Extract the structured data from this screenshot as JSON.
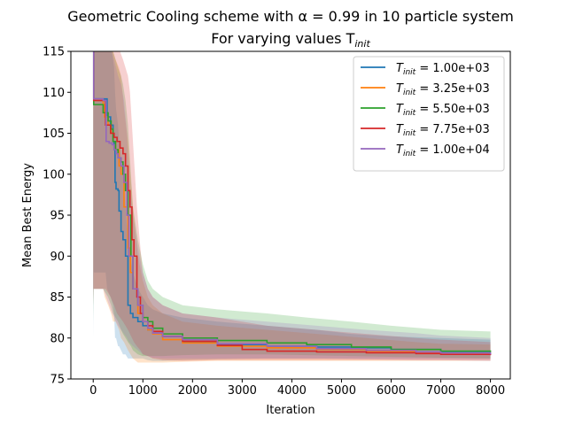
{
  "chart_data": {
    "type": "line",
    "title": "Geometric Cooling scheme with α = 0.99 in 10 particle system",
    "subtitle": "For varying values T",
    "subtitle_subscript": "init",
    "xlabel": "Iteration",
    "ylabel": "Mean Best Energy",
    "xlim": [
      -450,
      8400
    ],
    "ylim": [
      75,
      115
    ],
    "xticks": [
      0,
      1000,
      2000,
      3000,
      4000,
      5000,
      6000,
      7000,
      8000
    ],
    "yticks": [
      75,
      80,
      85,
      90,
      95,
      100,
      105,
      110,
      115
    ],
    "grid": false,
    "legend_position": "top-right",
    "legend_prefix": "T",
    "legend_subscript": "init",
    "series": [
      {
        "name": "1.00e+03",
        "color": "#1f77b4",
        "x": [
          0,
          10,
          250,
          280,
          350,
          400,
          420,
          440,
          460,
          500,
          520,
          560,
          600,
          650,
          700,
          750,
          800,
          900,
          1000,
          1100,
          1200,
          1400,
          1800,
          2500,
          3500,
          4500,
          5200,
          6000,
          7000,
          8000
        ],
        "y": [
          115,
          109.2,
          109.2,
          107,
          106,
          104,
          103,
          99,
          98.2,
          98,
          95.5,
          93,
          92,
          90,
          84,
          83,
          82.5,
          82,
          81.5,
          81,
          80.6,
          80.2,
          79.5,
          79.2,
          79,
          78.9,
          78.8,
          78.6,
          78.3,
          78.3
        ],
        "lower": [
          80,
          88,
          88,
          86,
          85,
          84,
          83,
          80,
          80,
          79,
          79,
          78.5,
          78,
          78,
          77.5,
          77.5,
          77.5,
          77.5,
          77.5,
          77.3,
          77.2,
          77.2,
          77.3,
          77.4,
          77.5,
          77.5,
          77.5,
          77.5,
          77.5,
          77.5
        ],
        "upper": [
          118,
          118,
          118,
          117,
          116,
          114,
          113,
          110,
          108,
          106,
          104,
          102,
          100,
          96,
          92,
          90,
          88,
          86,
          85,
          84,
          83.5,
          83,
          82.5,
          82,
          81.5,
          81,
          80.5,
          80.2,
          80,
          79.8
        ]
      },
      {
        "name": "3.25e+03",
        "color": "#ff7f0e",
        "x": [
          0,
          10,
          200,
          230,
          300,
          360,
          400,
          450,
          520,
          560,
          620,
          700,
          750,
          800,
          900,
          1000,
          1100,
          1200,
          1400,
          1800,
          2500,
          3500,
          4500,
          5500,
          6500,
          7000,
          8000
        ],
        "y": [
          115,
          109,
          108.5,
          107,
          106,
          105,
          104,
          103,
          101,
          100,
          96,
          91,
          88,
          86,
          83,
          82,
          81,
          80.5,
          79.8,
          79.4,
          79,
          78.8,
          78.6,
          78.4,
          78.2,
          78,
          78
        ],
        "lower": [
          84,
          86,
          86,
          85,
          84,
          83,
          82,
          82,
          81,
          80,
          79.5,
          78.5,
          78,
          77.5,
          77,
          77,
          77,
          77,
          77,
          77.1,
          77.2,
          77.2,
          77.2,
          77.2,
          77.2,
          77.2,
          77.2
        ],
        "upper": [
          118,
          118,
          118,
          117,
          116,
          116,
          115,
          114,
          113,
          112,
          108,
          104,
          100,
          96,
          90,
          87,
          85,
          84,
          83,
          82,
          81.5,
          81,
          80.5,
          80,
          79.5,
          79.3,
          79.2
        ]
      },
      {
        "name": "5.50e+03",
        "color": "#2ca02c",
        "x": [
          0,
          10,
          200,
          300,
          360,
          400,
          450,
          500,
          560,
          600,
          650,
          700,
          760,
          800,
          900,
          1000,
          1100,
          1200,
          1400,
          1800,
          2500,
          3500,
          4300,
          5200,
          6000,
          7000,
          8000
        ],
        "y": [
          115,
          108.5,
          107.5,
          106.5,
          105.5,
          104,
          103,
          102,
          101.5,
          100,
          98,
          95,
          90,
          86,
          84,
          82.5,
          82,
          81.2,
          80.5,
          80,
          79.7,
          79.4,
          79.2,
          78.9,
          78.6,
          78.4,
          78.3
        ],
        "lower": [
          82,
          86,
          86,
          85,
          84,
          83,
          82.5,
          82,
          81,
          80.5,
          80,
          79.5,
          79,
          78.5,
          78,
          77.8,
          77.8,
          77.8,
          77.8,
          77.9,
          78,
          78,
          77.9,
          77.8,
          77.7,
          77.6,
          77.5
        ],
        "upper": [
          118,
          118,
          118,
          117,
          116,
          115,
          114,
          113,
          112,
          111,
          109,
          106,
          100,
          96,
          92,
          89,
          87,
          86,
          85,
          84,
          83.5,
          83,
          82.5,
          82,
          81.5,
          81,
          80.8
        ]
      },
      {
        "name": "7.75e+03",
        "color": "#d62728",
        "x": [
          0,
          10,
          250,
          350,
          420,
          480,
          540,
          600,
          650,
          700,
          740,
          780,
          820,
          880,
          950,
          1000,
          1100,
          1200,
          1400,
          1800,
          2500,
          3000,
          3500,
          4500,
          5500,
          6500,
          7000,
          8000
        ],
        "y": [
          115,
          109,
          106,
          105,
          104.5,
          104,
          103.2,
          102.5,
          101,
          98,
          96,
          92,
          90,
          85,
          83,
          82,
          81.5,
          80.8,
          80.2,
          79.6,
          79.1,
          78.6,
          78.4,
          78.3,
          78.2,
          78.1,
          78,
          77.9
        ],
        "lower": [
          86,
          86,
          86,
          85,
          84,
          83,
          82.5,
          82,
          81.5,
          81,
          80.5,
          80,
          79.5,
          79,
          78.5,
          78,
          77.8,
          77.5,
          77.3,
          77.2,
          77.3,
          77.3,
          77.3,
          77.3,
          77.3,
          77.3,
          77.3,
          77.3
        ],
        "upper": [
          118,
          118,
          118,
          118,
          117,
          116,
          115,
          114,
          113,
          112,
          110,
          106,
          102,
          96,
          91,
          88,
          86,
          85,
          84,
          83,
          82.5,
          82,
          81.5,
          81,
          80.5,
          80,
          79.8,
          79.5
        ]
      },
      {
        "name": "1.00e+04",
        "color": "#9467bd",
        "x": [
          0,
          10,
          200,
          260,
          320,
          380,
          420,
          460,
          500,
          560,
          620,
          680,
          720,
          800,
          900,
          1000,
          1100,
          1200,
          1400,
          1800,
          2500,
          3500,
          4500,
          5500,
          6500,
          7000,
          8000
        ],
        "y": [
          115,
          109.2,
          109,
          104,
          103.8,
          103.6,
          103,
          102.5,
          102,
          101,
          99,
          95,
          90,
          86,
          84,
          82,
          81.2,
          80.6,
          80.2,
          79.8,
          79.3,
          79,
          78.7,
          78.5,
          78.3,
          78.2,
          78
        ],
        "lower": [
          84,
          86,
          86,
          85,
          84,
          83,
          82.5,
          82,
          81.5,
          81,
          80.5,
          80,
          79.5,
          79,
          78.5,
          78,
          77.8,
          77.6,
          77.5,
          77.5,
          77.5,
          77.5,
          77.5,
          77.4,
          77.3,
          77.3,
          77.2
        ],
        "upper": [
          118,
          118,
          118,
          117,
          116,
          115,
          114,
          113,
          112,
          111,
          109,
          105,
          100,
          95,
          91,
          88,
          86,
          85,
          84,
          83,
          82.5,
          82,
          81.5,
          81,
          80.6,
          80.3,
          80
        ]
      }
    ]
  }
}
